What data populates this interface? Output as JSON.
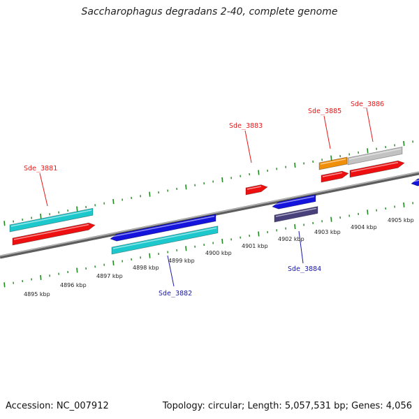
{
  "title": "Saccharophagus degradans 2-40, complete genome",
  "footer": {
    "accession": "Accession: NC_007912",
    "summary": "Topology: circular; Length: 5,057,531 bp; Genes: 4,056"
  },
  "colors": {
    "forward_label": "#e8191b",
    "reverse_label": "#1a1aa8",
    "tick": "#1f8a1f",
    "backbone": "#777777",
    "red": "#ee1010",
    "blue": "#1414dd",
    "cyan": "#1cc8cc",
    "orange": "#f0900a",
    "gray": "#c2c2c2",
    "navy": "#48407a"
  },
  "axis": {
    "unit": "kbp",
    "labels": [
      "4895 kbp",
      "4896 kbp",
      "4897 kbp",
      "4898 kbp",
      "4899 kbp",
      "4900 kbp",
      "4901 kbp",
      "4902 kbp",
      "4903 kbp",
      "4904 kbp",
      "4905 kbp"
    ]
  },
  "genes": [
    {
      "label": "Sde_3881",
      "strand": "forward"
    },
    {
      "label": "Sde_3882",
      "strand": "reverse"
    },
    {
      "label": "Sde_3883",
      "strand": "forward"
    },
    {
      "label": "Sde_3884",
      "strand": "reverse"
    },
    {
      "label": "Sde_3885",
      "strand": "forward"
    },
    {
      "label": "Sde_3886",
      "strand": "forward"
    }
  ]
}
